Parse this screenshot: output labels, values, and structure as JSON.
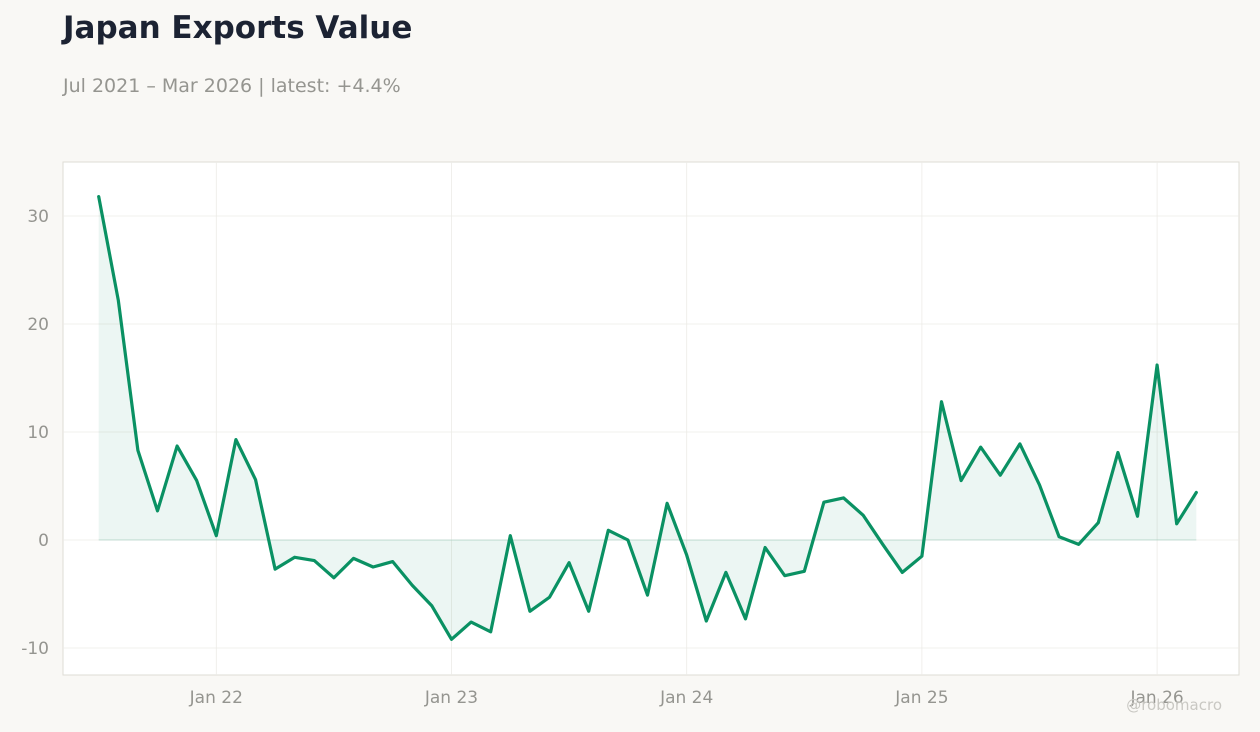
{
  "header": {
    "title": "Japan Exports Value",
    "subtitle": "Jul 2021 – Mar 2026 | latest: +4.4%"
  },
  "watermark": "@robomacro",
  "colors": {
    "line": "#0a9163",
    "fill": "#0a9163",
    "grid": "#ecebe7",
    "axis_text": "#959590",
    "plot_bg": "#ffffff",
    "plot_border": "#dedcd5"
  },
  "chart_data": {
    "type": "area",
    "title": "Japan Exports Value",
    "subtitle": "Jul 2021 – Mar 2026 | latest: +4.4%",
    "xlabel": "",
    "ylabel": "",
    "x_tick_labels": [
      "Jan 22",
      "Jan 23",
      "Jan 24",
      "Jan 25",
      "Jan 26"
    ],
    "y_ticks": [
      -10,
      0,
      10,
      20,
      30
    ],
    "ylim": [
      -12.5,
      35
    ],
    "xlim": [
      "2021-05",
      "2026-05"
    ],
    "grid": true,
    "series": [
      {
        "x": [
          "2021-07",
          "2021-08",
          "2021-09",
          "2021-10",
          "2021-11",
          "2021-12",
          "2022-01",
          "2022-02",
          "2022-03",
          "2022-04",
          "2022-05",
          "2022-06",
          "2022-07",
          "2022-08",
          "2022-09",
          "2022-10",
          "2022-11",
          "2022-12",
          "2023-01",
          "2023-02",
          "2023-03",
          "2023-04",
          "2023-05",
          "2023-06",
          "2023-07",
          "2023-08",
          "2023-09",
          "2023-10",
          "2023-11",
          "2023-12",
          "2024-01",
          "2024-02",
          "2024-03",
          "2024-04",
          "2024-05",
          "2024-06",
          "2024-07",
          "2024-08",
          "2024-09",
          "2024-10",
          "2024-11",
          "2024-12",
          "2025-01",
          "2025-02",
          "2025-03",
          "2025-04",
          "2025-05",
          "2025-06",
          "2025-07",
          "2025-08",
          "2025-09",
          "2025-10",
          "2025-11",
          "2025-12",
          "2026-01",
          "2026-02",
          "2026-03"
        ],
        "values": [
          31.8,
          22.2,
          8.3,
          2.7,
          8.7,
          5.5,
          0.4,
          9.3,
          5.6,
          -2.7,
          -1.6,
          -1.9,
          -3.5,
          -1.7,
          -2.5,
          -2.0,
          -4.2,
          -6.1,
          -9.2,
          -7.6,
          -8.5,
          0.4,
          -6.6,
          -5.3,
          -2.1,
          -6.6,
          0.9,
          0.0,
          -5.1,
          3.4,
          -1.4,
          -7.5,
          -3.0,
          -7.3,
          -0.7,
          -3.3,
          -2.9,
          3.5,
          3.9,
          2.3,
          -0.4,
          -3.0,
          -1.5,
          12.8,
          5.5,
          8.6,
          6.0,
          8.9,
          5.1,
          0.3,
          -0.4,
          1.6,
          8.1,
          2.2,
          16.2,
          1.5,
          4.4
        ]
      }
    ]
  }
}
